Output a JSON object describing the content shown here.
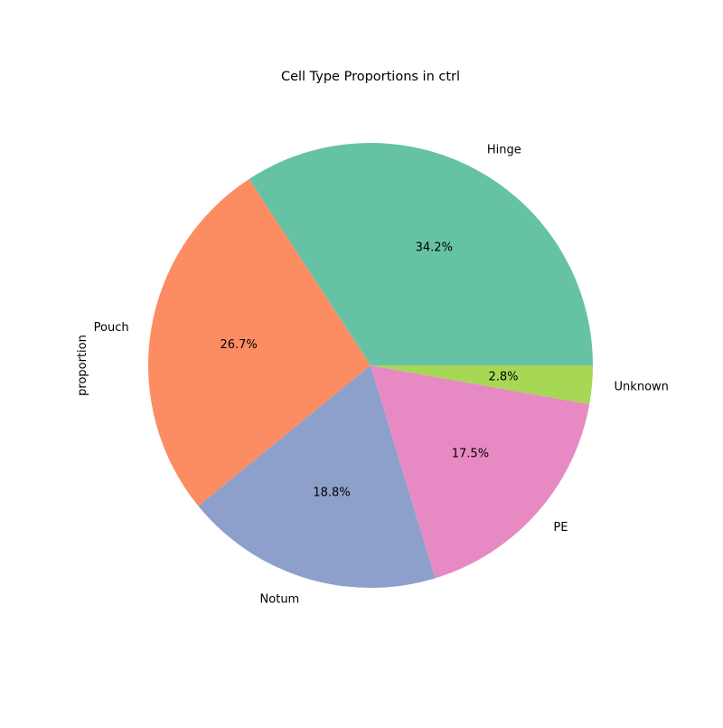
{
  "chart_data": {
    "type": "pie",
    "title": "Cell Type Proportions in ctrl",
    "ylabel": "proportion",
    "categories": [
      "Hinge",
      "Pouch",
      "Notum",
      "PE",
      "Unknown"
    ],
    "values": [
      34.2,
      26.7,
      18.8,
      17.5,
      2.8
    ],
    "value_labels": [
      "34.2%",
      "26.7%",
      "18.8%",
      "17.5%",
      "2.8%"
    ],
    "colors": [
      "#66c2a5",
      "#fc8d62",
      "#8da0cb",
      "#e78ac3",
      "#a6d854"
    ],
    "start_angle_deg": 0,
    "direction": "counterclockwise"
  }
}
